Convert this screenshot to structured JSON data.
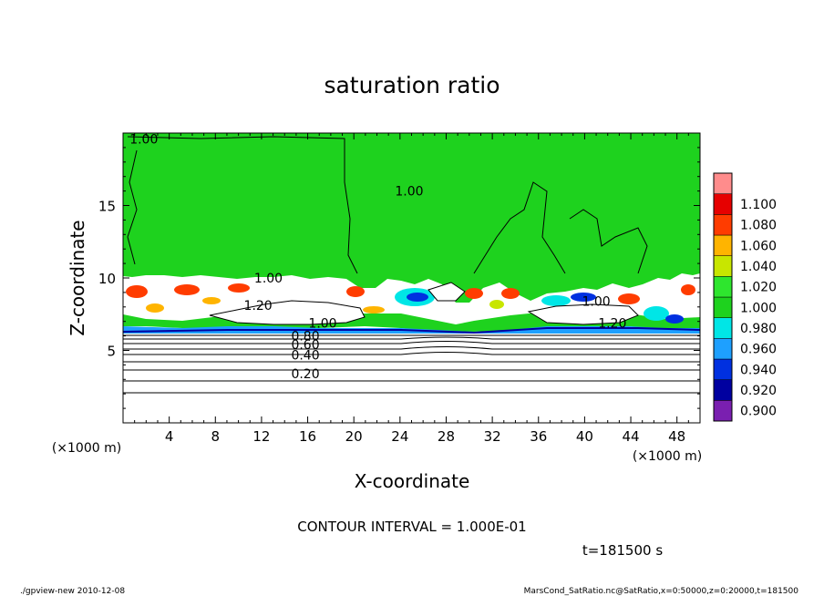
{
  "chart_data": {
    "type": "heatmap",
    "title": "saturation ratio",
    "xlabel": "X-coordinate",
    "ylabel": "Z-coordinate",
    "x_unit": "(×1000 m)",
    "z_unit": "(×1000 m)",
    "x_ticks": [
      4,
      8,
      12,
      16,
      20,
      24,
      28,
      32,
      36,
      40,
      44,
      48
    ],
    "z_ticks": [
      5,
      10,
      15
    ],
    "xlim": [
      0,
      50
    ],
    "zlim": [
      0,
      20
    ],
    "colorbar": {
      "levels": [
        0.9,
        0.92,
        0.94,
        0.96,
        0.98,
        1.0,
        1.02,
        1.04,
        1.06,
        1.08,
        1.1
      ],
      "labels": [
        "0.900",
        "0.920",
        "0.940",
        "0.960",
        "0.980",
        "1.000",
        "1.020",
        "1.040",
        "1.060",
        "1.080",
        "1.100"
      ],
      "colors": [
        "#7a1fb0",
        "#0000a0",
        "#0030e0",
        "#1ea0ff",
        "#00e6e6",
        "#1ed21e",
        "#2ee62e",
        "#c8e600",
        "#ffb400",
        "#ff3c00",
        "#e60000",
        "#ff8c8c"
      ]
    },
    "contour_labels": [
      {
        "text": "1.00",
        "x": 1.8,
        "z": 19.6
      },
      {
        "text": "1.00",
        "x": 24.8,
        "z": 16.0
      },
      {
        "text": "1.00",
        "x": 12.6,
        "z": 10.0
      },
      {
        "text": "1.20",
        "x": 11.7,
        "z": 8.1
      },
      {
        "text": "1.00",
        "x": 17.3,
        "z": 6.9
      },
      {
        "text": "1.00",
        "x": 41.0,
        "z": 8.4
      },
      {
        "text": "1.20",
        "x": 42.4,
        "z": 6.9
      },
      {
        "text": "0.80",
        "x": 15.8,
        "z": 6.0
      },
      {
        "text": "0.60",
        "x": 15.8,
        "z": 5.4
      },
      {
        "text": "0.40",
        "x": 15.8,
        "z": 4.7
      },
      {
        "text": "0.20",
        "x": 15.8,
        "z": 3.4
      }
    ],
    "contour_interval": "CONTOUR INTERVAL = 1.000E-01",
    "time_label": "t=181500 s"
  },
  "footer": {
    "left": "./gpview-new   2010-12-08",
    "right": "MarsCond_SatRatio.nc@SatRatio,x=0:50000,z=0:20000,t=181500"
  }
}
